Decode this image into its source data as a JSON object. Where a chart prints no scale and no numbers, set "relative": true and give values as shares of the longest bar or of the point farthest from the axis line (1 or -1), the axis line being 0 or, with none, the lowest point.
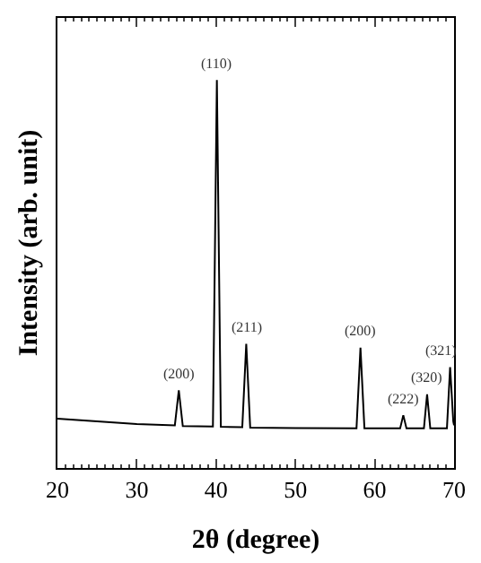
{
  "chart_data": {
    "type": "line",
    "relative": true,
    "xlabel": "2θ (degree)",
    "ylabel": "Intensity (arb. unit)",
    "x": [
      20,
      25,
      30,
      34.8,
      35.3,
      35.8,
      39.6,
      40.1,
      40.6,
      43.3,
      43.8,
      44.3,
      50,
      57.7,
      58.2,
      58.7,
      63.2,
      63.6,
      64.0,
      66.2,
      66.6,
      67.0,
      69.1,
      69.5,
      69.9,
      70
    ],
    "series": [
      {
        "color": "#000000",
        "values": [
          0.127,
          0.12,
          0.113,
          0.11,
          0.2,
          0.108,
          0.107,
          1.0,
          0.106,
          0.105,
          0.32,
          0.104,
          0.103,
          0.102,
          0.31,
          0.102,
          0.102,
          0.136,
          0.102,
          0.102,
          0.19,
          0.102,
          0.102,
          0.26,
          0.12,
          0.11
        ]
      }
    ],
    "xlim": [
      20,
      70
    ],
    "xticks": [
      20,
      30,
      40,
      50,
      60,
      70
    ],
    "annotations": [
      {
        "text": "(200)",
        "x": 35.3,
        "y": 0.2
      },
      {
        "text": "(110)",
        "x": 40.1,
        "y": 1.0
      },
      {
        "text": "(211)",
        "x": 43.8,
        "y": 0.32
      },
      {
        "text": "(200)",
        "x": 58.2,
        "y": 0.31
      },
      {
        "text": "(222)",
        "x": 63.6,
        "y": 0.136
      },
      {
        "text": "(320)",
        "x": 66.6,
        "y": 0.19
      },
      {
        "text": "(321)",
        "x": 69.5,
        "y": 0.26
      }
    ],
    "marker": "none",
    "line_style": "solid"
  }
}
